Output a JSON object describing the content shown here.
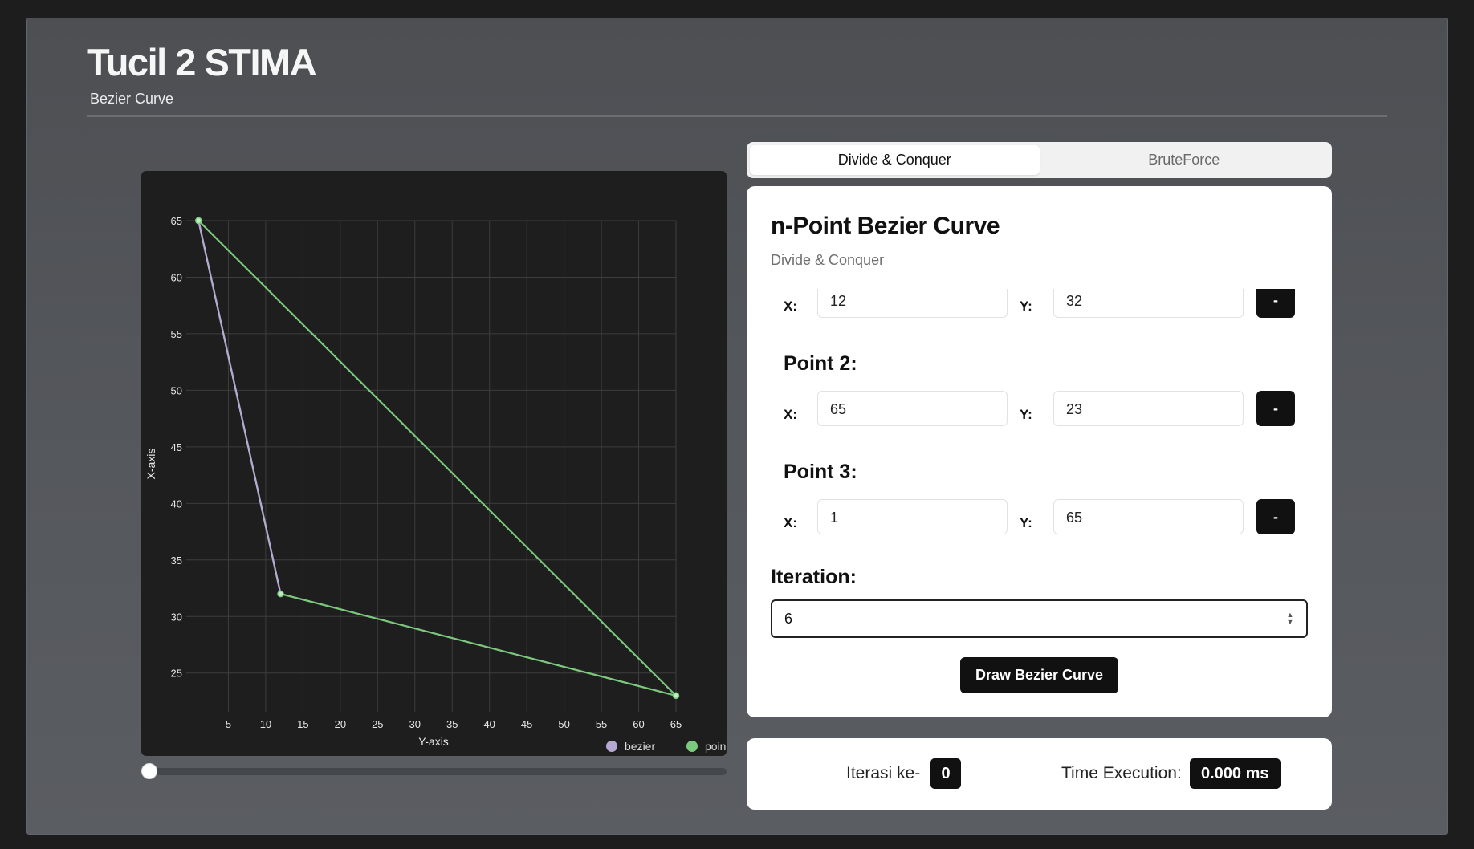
{
  "header": {
    "title": "Tucil 2 STIMA",
    "subtitle": "Bezier Curve"
  },
  "tabs": [
    {
      "label": "Divide & Conquer",
      "active": true
    },
    {
      "label": "BruteForce",
      "active": false
    }
  ],
  "card": {
    "title": "n-Point Bezier Curve",
    "subtitle": "Divide & Conquer",
    "x_label": "X:",
    "y_label": "Y:",
    "remove_label": "-",
    "points": [
      {
        "label": "",
        "x": "12",
        "y": "32"
      },
      {
        "label": "Point 2:",
        "x": "65",
        "y": "23"
      },
      {
        "label": "Point 3:",
        "x": "1",
        "y": "65"
      }
    ],
    "iteration_label": "Iteration:",
    "iteration_value": "6",
    "draw_label": "Draw Bezier Curve"
  },
  "status": {
    "iteration_label": "Iterasi ke-",
    "iteration_value": "0",
    "time_label": "Time Execution:",
    "time_value": "0.000 ms"
  },
  "slider": {
    "value": 0
  },
  "chart_data": {
    "type": "line",
    "xlabel": "Y-axis",
    "ylabel": "X-axis",
    "xlim": [
      0,
      65
    ],
    "ylim": [
      22,
      65
    ],
    "x_ticks": [
      5,
      10,
      15,
      20,
      25,
      30,
      35,
      40,
      45,
      50,
      55,
      60,
      65
    ],
    "y_ticks": [
      25,
      30,
      35,
      40,
      45,
      50,
      55,
      60,
      65
    ],
    "grid": true,
    "legend_position": "bottom-right",
    "series": [
      {
        "name": "bezier",
        "color": "#b7a7d3",
        "points": [
          [
            1,
            65
          ],
          [
            12,
            32
          ]
        ]
      },
      {
        "name": "point",
        "legend_label": "poin",
        "color": "#7cc97e",
        "points": [
          [
            1,
            65
          ],
          [
            12,
            32
          ],
          [
            65,
            23
          ],
          [
            1,
            65
          ]
        ]
      }
    ]
  }
}
